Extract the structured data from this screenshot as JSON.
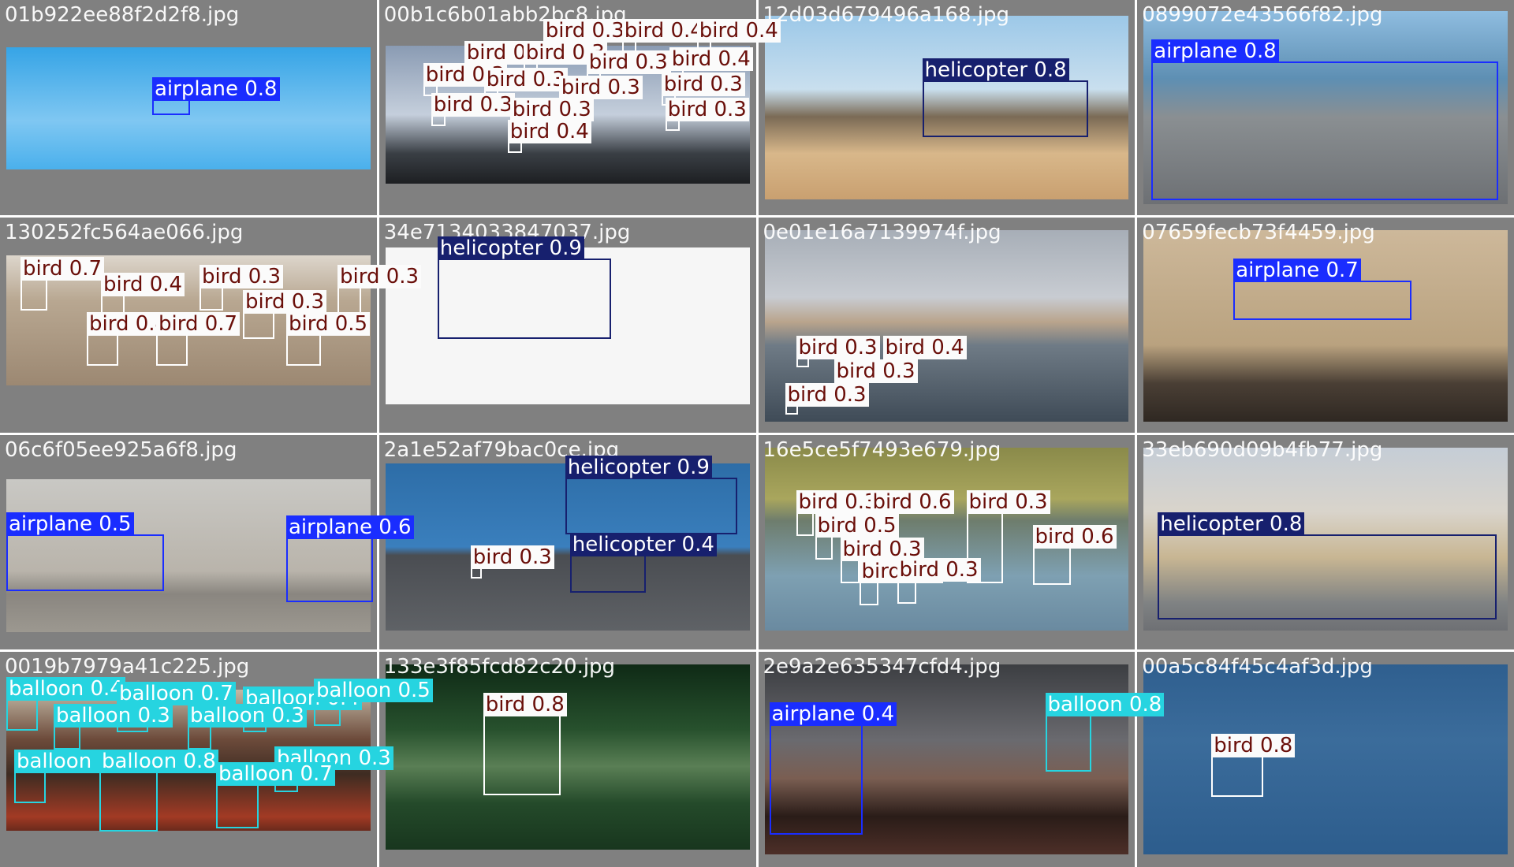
{
  "colors": {
    "airplane": "#1a2dff",
    "helicopter": "#17206e",
    "bird": "#ffffff",
    "balloon": "#26d4e0",
    "tile_bg": "#808080"
  },
  "tiles": [
    {
      "filename": "01b922ee88f2d2f8.jpg",
      "detections": [
        {
          "label": "airplane 0.8",
          "cls": "airplane"
        }
      ]
    },
    {
      "filename": "00b1c6b01abb2bc8.jpg",
      "detections": [
        {
          "label": "bird 0.3",
          "cls": "bird"
        },
        {
          "label": "bird 0.4",
          "cls": "bird"
        },
        {
          "label": "bird 0.4",
          "cls": "bird"
        },
        {
          "label": "bird 0.4",
          "cls": "bird"
        },
        {
          "label": "bird 0.3",
          "cls": "bird"
        },
        {
          "label": "bird 0.3",
          "cls": "bird"
        },
        {
          "label": "bird 0.4",
          "cls": "bird"
        },
        {
          "label": "bird 0.3",
          "cls": "bird"
        },
        {
          "label": "bird 0.3",
          "cls": "bird"
        },
        {
          "label": "bird 0.3",
          "cls": "bird"
        },
        {
          "label": "bird 0.3",
          "cls": "bird"
        },
        {
          "label": "bird 0.3",
          "cls": "bird"
        },
        {
          "label": "bird 0.3",
          "cls": "bird"
        },
        {
          "label": "bird 0.3",
          "cls": "bird"
        },
        {
          "label": "bird 0.4",
          "cls": "bird"
        }
      ]
    },
    {
      "filename": "12d03d679496a168.jpg",
      "detections": [
        {
          "label": "helicopter 0.8",
          "cls": "helicopter"
        }
      ]
    },
    {
      "filename": "0899072e43566f82.jpg",
      "detections": [
        {
          "label": "airplane 0.8",
          "cls": "airplane"
        }
      ]
    },
    {
      "filename": "130252fc564ae066.jpg",
      "detections": [
        {
          "label": "bird 0.7",
          "cls": "bird"
        },
        {
          "label": "bird 0.4",
          "cls": "bird"
        },
        {
          "label": "bird 0.3",
          "cls": "bird"
        },
        {
          "label": "bird 0.3",
          "cls": "bird"
        },
        {
          "label": "bird 0.3",
          "cls": "bird"
        },
        {
          "label": "bird 0.4",
          "cls": "bird"
        },
        {
          "label": "bird 0.5",
          "cls": "bird"
        },
        {
          "label": "bird 0.7",
          "cls": "bird"
        }
      ]
    },
    {
      "filename": "34e7134033847037.jpg",
      "detections": [
        {
          "label": "helicopter 0.9",
          "cls": "helicopter"
        }
      ]
    },
    {
      "filename": "0e01e16a7139974f.jpg",
      "detections": [
        {
          "label": "bird 0.3",
          "cls": "bird"
        },
        {
          "label": "bird 0.4",
          "cls": "bird"
        },
        {
          "label": "bird 0.3",
          "cls": "bird"
        },
        {
          "label": "bird 0.3",
          "cls": "bird"
        }
      ]
    },
    {
      "filename": "07659fecb73f4459.jpg",
      "detections": [
        {
          "label": "airplane 0.7",
          "cls": "airplane"
        }
      ]
    },
    {
      "filename": "06c6f05ee925a6f8.jpg",
      "detections": [
        {
          "label": "airplane 0.5",
          "cls": "airplane"
        },
        {
          "label": "airplane 0.6",
          "cls": "airplane"
        }
      ]
    },
    {
      "filename": "2a1e52af79bac0ce.jpg",
      "detections": [
        {
          "label": "helicopter 0.9",
          "cls": "helicopter"
        },
        {
          "label": "helicopter 0.4",
          "cls": "helicopter"
        },
        {
          "label": "bird 0.3",
          "cls": "bird"
        }
      ]
    },
    {
      "filename": "16e5ce5f7493e679.jpg",
      "detections": [
        {
          "label": "bird 0.3",
          "cls": "bird"
        },
        {
          "label": "bird 0.6",
          "cls": "bird"
        },
        {
          "label": "bird 0.5",
          "cls": "bird"
        },
        {
          "label": "bird 0.3",
          "cls": "bird"
        },
        {
          "label": "bird 0.3",
          "cls": "bird"
        },
        {
          "label": "bird 0.3",
          "cls": "bird"
        },
        {
          "label": "bird 0.6",
          "cls": "bird"
        },
        {
          "label": "bird 0.3",
          "cls": "bird"
        }
      ]
    },
    {
      "filename": "33eb690d09b4fb77.jpg",
      "detections": [
        {
          "label": "helicopter 0.8",
          "cls": "helicopter"
        }
      ]
    },
    {
      "filename": "0019b7979a41c225.jpg",
      "detections": [
        {
          "label": "balloon 0.4",
          "cls": "balloon"
        },
        {
          "label": "balloon 0.7",
          "cls": "balloon"
        },
        {
          "label": "balloon 0.4",
          "cls": "balloon"
        },
        {
          "label": "balloon 0.5",
          "cls": "balloon"
        },
        {
          "label": "balloon 0.3",
          "cls": "balloon"
        },
        {
          "label": "balloon 0.3",
          "cls": "balloon"
        },
        {
          "label": "balloon 0.6",
          "cls": "balloon"
        },
        {
          "label": "balloon 0.8",
          "cls": "balloon"
        },
        {
          "label": "balloon 0.3",
          "cls": "balloon"
        },
        {
          "label": "balloon 0.7",
          "cls": "balloon"
        }
      ]
    },
    {
      "filename": "133e3f85fcd82c20.jpg",
      "detections": [
        {
          "label": "bird 0.8",
          "cls": "bird"
        }
      ]
    },
    {
      "filename": "2e9a2e635347cfd4.jpg",
      "detections": [
        {
          "label": "airplane 0.4",
          "cls": "airplane"
        },
        {
          "label": "balloon 0.8",
          "cls": "balloon"
        }
      ]
    },
    {
      "filename": "00a5c84f45c4af3d.jpg",
      "detections": [
        {
          "label": "bird 0.8",
          "cls": "bird"
        }
      ]
    }
  ]
}
